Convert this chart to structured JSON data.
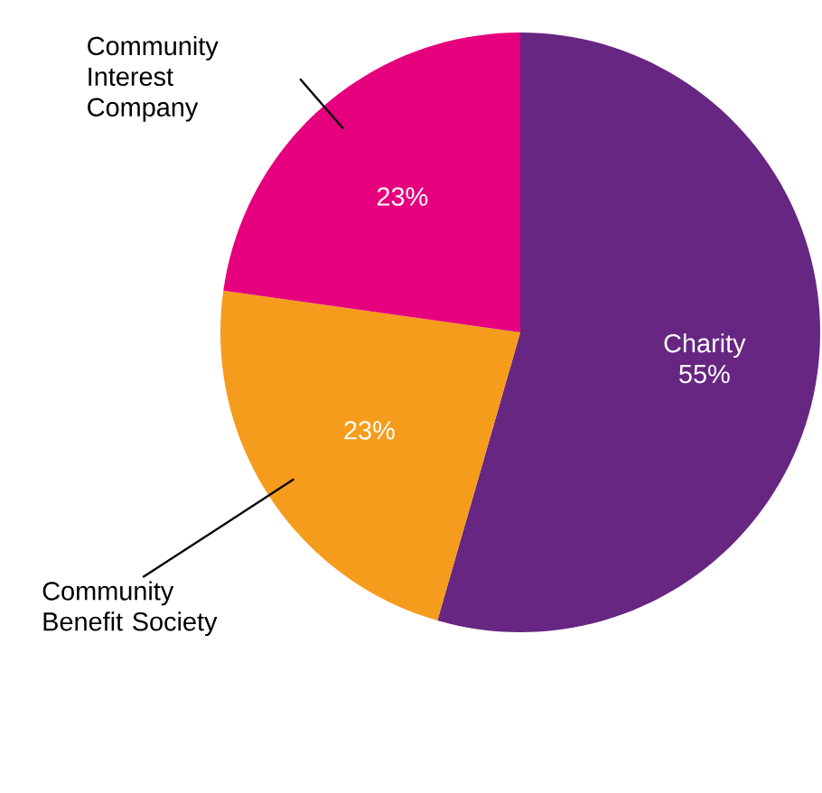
{
  "chart_data": {
    "type": "pie",
    "categories": [
      "Charity",
      "Community Benefit Society",
      "Community Interest Company"
    ],
    "values": [
      55,
      23,
      23
    ],
    "value_labels": [
      "55%",
      "23%",
      "23%"
    ],
    "colors": [
      "#662681",
      "#f59c1c",
      "#e6007e"
    ]
  }
}
